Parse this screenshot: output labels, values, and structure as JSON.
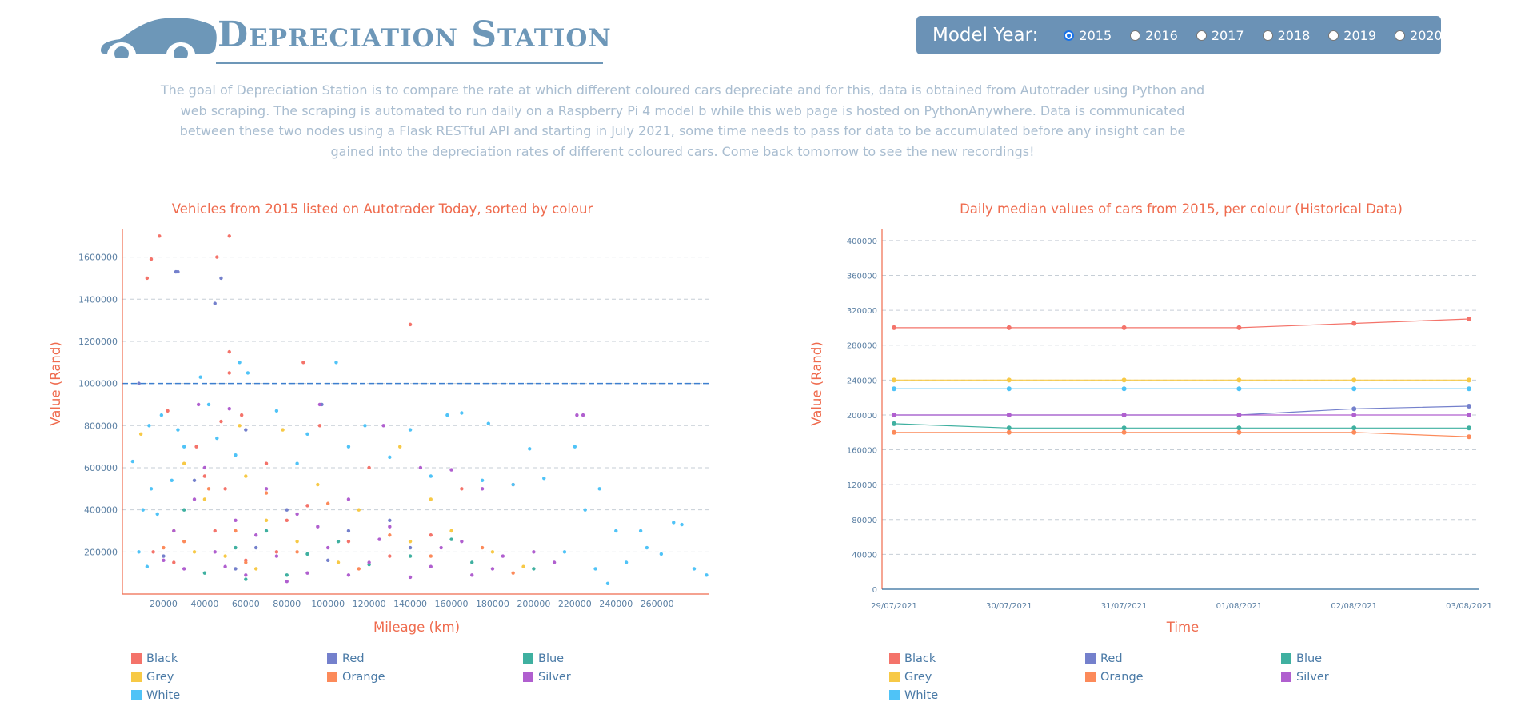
{
  "header": {
    "title": "Depreciation Station",
    "year_label": "Model Year:",
    "years": [
      "2015",
      "2016",
      "2017",
      "2018",
      "2019",
      "2020"
    ],
    "selected_year": "2015"
  },
  "intro": "The goal of Depreciation Station is to compare the rate at which different coloured cars depreciate and for this, data is obtained from Autotrader using Python and web scraping. The scraping is automated to run daily on a Raspberry Pi 4 model b while this web page is hosted on PythonAnywhere. Data is communicated between these two nodes using a Flask RESTful API and starting in July 2021, some time needs to pass for data to be accumulated before any insight can be gained into the depreciation rates of different coloured cars. Come back tomorrow to see the new recordings!",
  "colors": {
    "accent": "#ef6b4e",
    "brand": "#6b92b6",
    "Black": "#f4736a",
    "Red": "#7480cc",
    "Blue": "#3fb0a0",
    "Grey": "#f7c946",
    "Orange": "#fc8a5a",
    "Silver": "#b05fcf",
    "White": "#4fc3f7"
  },
  "chart_data": [
    {
      "type": "scatter",
      "title": "Vehicles from 2015 listed on Autotrader Today, sorted by colour",
      "xlabel": "Mileage (km)",
      "ylabel": "Value (Rand)",
      "xlim": [
        0,
        285000
      ],
      "ylim": [
        0,
        1720000
      ],
      "x_ticks": [
        "20000",
        "40000",
        "60000",
        "80000",
        "100000",
        "120000",
        "140000",
        "160000",
        "180000",
        "200000",
        "220000",
        "240000",
        "260000"
      ],
      "y_ticks": [
        "200000",
        "400000",
        "600000",
        "800000",
        "1000000",
        "1200000",
        "1400000",
        "1600000"
      ],
      "grid": "horizontal dashed",
      "reference_line": 1000000,
      "legend": [
        "Black",
        "Red",
        "Blue",
        "Grey",
        "Orange",
        "Silver",
        "White"
      ],
      "legend_position": "bottom",
      "series": [
        {
          "name": "Black",
          "points": [
            [
              18000,
              1700000
            ],
            [
              52000,
              1700000
            ],
            [
              14000,
              1590000
            ],
            [
              46000,
              1600000
            ],
            [
              12000,
              1500000
            ],
            [
              52000,
              1150000
            ],
            [
              88000,
              1100000
            ],
            [
              140000,
              1280000
            ],
            [
              52000,
              1050000
            ],
            [
              58000,
              850000
            ],
            [
              22000,
              870000
            ],
            [
              48000,
              820000
            ],
            [
              96000,
              800000
            ],
            [
              36000,
              700000
            ],
            [
              120000,
              600000
            ],
            [
              70000,
              620000
            ],
            [
              165000,
              500000
            ],
            [
              190000,
              520000
            ],
            [
              45000,
              300000
            ],
            [
              80000,
              350000
            ],
            [
              110000,
              250000
            ],
            [
              15000,
              200000
            ],
            [
              60000,
              160000
            ],
            [
              130000,
              180000
            ],
            [
              25000,
              150000
            ],
            [
              90000,
              420000
            ],
            [
              50000,
              500000
            ],
            [
              40000,
              560000
            ],
            [
              75000,
              200000
            ],
            [
              150000,
              280000
            ]
          ]
        },
        {
          "name": "Red",
          "points": [
            [
              26000,
              1530000
            ],
            [
              27000,
              1530000
            ],
            [
              48000,
              1500000
            ],
            [
              45000,
              1380000
            ],
            [
              8000,
              1000000
            ],
            [
              97000,
              900000
            ],
            [
              60000,
              780000
            ],
            [
              35000,
              540000
            ],
            [
              80000,
              400000
            ],
            [
              110000,
              300000
            ],
            [
              140000,
              220000
            ],
            [
              20000,
              180000
            ],
            [
              65000,
              220000
            ],
            [
              100000,
              160000
            ],
            [
              130000,
              350000
            ],
            [
              55000,
              120000
            ]
          ]
        },
        {
          "name": "Blue",
          "points": [
            [
              30000,
              400000
            ],
            [
              70000,
              300000
            ],
            [
              105000,
              250000
            ],
            [
              140000,
              180000
            ],
            [
              170000,
              150000
            ],
            [
              55000,
              220000
            ],
            [
              90000,
              190000
            ],
            [
              200000,
              120000
            ],
            [
              120000,
              140000
            ],
            [
              40000,
              100000
            ],
            [
              80000,
              90000
            ],
            [
              160000,
              260000
            ],
            [
              60000,
              70000
            ]
          ]
        },
        {
          "name": "Grey",
          "points": [
            [
              9000,
              760000
            ],
            [
              30000,
              620000
            ],
            [
              57000,
              800000
            ],
            [
              78000,
              780000
            ],
            [
              60000,
              560000
            ],
            [
              135000,
              700000
            ],
            [
              40000,
              450000
            ],
            [
              95000,
              520000
            ],
            [
              150000,
              450000
            ],
            [
              25000,
              300000
            ],
            [
              70000,
              350000
            ],
            [
              115000,
              400000
            ],
            [
              180000,
              200000
            ],
            [
              50000,
              180000
            ],
            [
              85000,
              250000
            ],
            [
              140000,
              250000
            ],
            [
              65000,
              120000
            ],
            [
              35000,
              200000
            ],
            [
              105000,
              150000
            ],
            [
              160000,
              300000
            ],
            [
              195000,
              130000
            ]
          ]
        },
        {
          "name": "Orange",
          "points": [
            [
              42000,
              500000
            ],
            [
              70000,
              480000
            ],
            [
              100000,
              430000
            ],
            [
              55000,
              300000
            ],
            [
              130000,
              280000
            ],
            [
              30000,
              250000
            ],
            [
              85000,
              200000
            ],
            [
              150000,
              180000
            ],
            [
              20000,
              220000
            ],
            [
              60000,
              150000
            ],
            [
              115000,
              120000
            ],
            [
              190000,
              100000
            ],
            [
              175000,
              220000
            ]
          ]
        },
        {
          "name": "Silver",
          "points": [
            [
              221000,
              850000
            ],
            [
              224000,
              850000
            ],
            [
              37000,
              900000
            ],
            [
              52000,
              880000
            ],
            [
              96000,
              900000
            ],
            [
              127000,
              800000
            ],
            [
              145000,
              600000
            ],
            [
              160000,
              590000
            ],
            [
              175000,
              500000
            ],
            [
              40000,
              600000
            ],
            [
              70000,
              500000
            ],
            [
              110000,
              450000
            ],
            [
              25000,
              300000
            ],
            [
              55000,
              350000
            ],
            [
              85000,
              380000
            ],
            [
              130000,
              320000
            ],
            [
              165000,
              250000
            ],
            [
              200000,
              200000
            ],
            [
              45000,
              200000
            ],
            [
              75000,
              180000
            ],
            [
              100000,
              220000
            ],
            [
              120000,
              150000
            ],
            [
              150000,
              130000
            ],
            [
              180000,
              120000
            ],
            [
              30000,
              120000
            ],
            [
              60000,
              90000
            ],
            [
              90000,
              100000
            ],
            [
              140000,
              80000
            ],
            [
              35000,
              450000
            ],
            [
              65000,
              280000
            ],
            [
              95000,
              320000
            ],
            [
              125000,
              260000
            ],
            [
              155000,
              220000
            ],
            [
              185000,
              180000
            ],
            [
              210000,
              150000
            ],
            [
              50000,
              130000
            ],
            [
              80000,
              60000
            ],
            [
              110000,
              90000
            ],
            [
              170000,
              90000
            ],
            [
              20000,
              160000
            ]
          ]
        },
        {
          "name": "White",
          "points": [
            [
              5000,
              630000
            ],
            [
              13000,
              800000
            ],
            [
              19000,
              850000
            ],
            [
              38000,
              1030000
            ],
            [
              61000,
              1050000
            ],
            [
              104000,
              1100000
            ],
            [
              57000,
              1100000
            ],
            [
              158000,
              850000
            ],
            [
              165000,
              860000
            ],
            [
              178000,
              810000
            ],
            [
              198000,
              690000
            ],
            [
              220000,
              700000
            ],
            [
              232000,
              500000
            ],
            [
              268000,
              340000
            ],
            [
              272000,
              330000
            ],
            [
              278000,
              120000
            ],
            [
              284000,
              90000
            ],
            [
              262000,
              190000
            ],
            [
              252000,
              300000
            ],
            [
              236000,
              50000
            ],
            [
              42000,
              900000
            ],
            [
              75000,
              870000
            ],
            [
              118000,
              800000
            ],
            [
              140000,
              780000
            ],
            [
              27000,
              780000
            ],
            [
              46000,
              740000
            ],
            [
              90000,
              760000
            ],
            [
              14000,
              500000
            ],
            [
              24000,
              540000
            ],
            [
              10000,
              400000
            ],
            [
              17000,
              380000
            ],
            [
              8000,
              200000
            ],
            [
              12000,
              130000
            ],
            [
              30000,
              700000
            ],
            [
              55000,
              660000
            ],
            [
              85000,
              620000
            ],
            [
              110000,
              700000
            ],
            [
              130000,
              650000
            ],
            [
              150000,
              560000
            ],
            [
              175000,
              540000
            ],
            [
              190000,
              520000
            ],
            [
              205000,
              550000
            ],
            [
              225000,
              400000
            ],
            [
              240000,
              300000
            ],
            [
              255000,
              220000
            ],
            [
              245000,
              150000
            ],
            [
              230000,
              120000
            ],
            [
              215000,
              200000
            ]
          ]
        }
      ]
    },
    {
      "type": "line",
      "title": "Daily median values of cars from 2015, per colour (Historical Data)",
      "xlabel": "Time",
      "ylabel": "Value (Rand)",
      "ylim": [
        0,
        410000
      ],
      "y_ticks": [
        "0",
        "40000",
        "80000",
        "120000",
        "160000",
        "200000",
        "240000",
        "280000",
        "320000",
        "360000",
        "400000"
      ],
      "categories": [
        "29/07/2021",
        "30/07/2021",
        "31/07/2021",
        "01/08/2021",
        "02/08/2021",
        "03/08/2021"
      ],
      "grid": "horizontal dashed",
      "legend": [
        "Black",
        "Red",
        "Blue",
        "Grey",
        "Orange",
        "Silver",
        "White"
      ],
      "legend_position": "bottom",
      "series": [
        {
          "name": "Black",
          "values": [
            300000,
            300000,
            300000,
            300000,
            305000,
            310000
          ]
        },
        {
          "name": "Grey",
          "values": [
            240000,
            240000,
            240000,
            240000,
            240000,
            240000
          ]
        },
        {
          "name": "White",
          "values": [
            230000,
            230000,
            230000,
            230000,
            230000,
            230000
          ]
        },
        {
          "name": "Red",
          "values": [
            200000,
            200000,
            200000,
            200000,
            207000,
            210000
          ]
        },
        {
          "name": "Silver",
          "values": [
            200000,
            200000,
            200000,
            200000,
            200000,
            200000
          ]
        },
        {
          "name": "Blue",
          "values": [
            190000,
            185000,
            185000,
            185000,
            185000,
            185000
          ]
        },
        {
          "name": "Orange",
          "values": [
            180000,
            180000,
            180000,
            180000,
            180000,
            175000
          ]
        }
      ]
    }
  ]
}
